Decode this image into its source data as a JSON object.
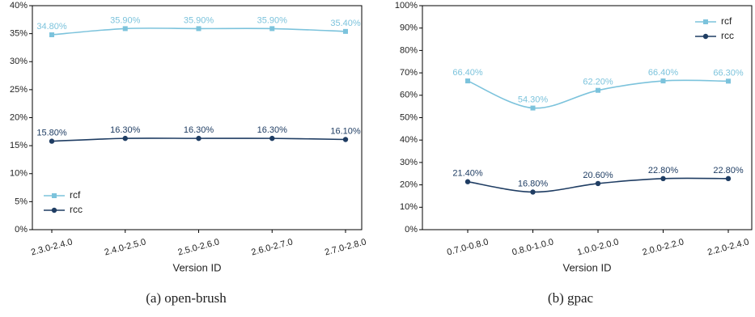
{
  "chart_data": [
    {
      "type": "line",
      "caption": "(a) open-brush",
      "x_label": "Version ID",
      "categories": [
        "2.3.0-2.4.0",
        "2.4.0-2.5.0",
        "2.5.0-2.6.0",
        "2.6.0-2.7.0",
        "2.7.0-2.8.0"
      ],
      "series": [
        {
          "name": "rcf",
          "color": "#7cc3dc",
          "marker": "square",
          "values": [
            34.8,
            35.9,
            35.9,
            35.9,
            35.4
          ],
          "value_labels": [
            "34.80%",
            "35.90%",
            "35.90%",
            "35.90%",
            "35.40%"
          ]
        },
        {
          "name": "rcc",
          "color": "#1f3d63",
          "marker": "circle",
          "values": [
            15.8,
            16.3,
            16.3,
            16.3,
            16.1
          ],
          "value_labels": [
            "15.80%",
            "16.30%",
            "16.30%",
            "16.30%",
            "16.10%"
          ]
        }
      ],
      "ylim": [
        0,
        40
      ],
      "yticks": [
        {
          "value": 0,
          "label": "0%"
        },
        {
          "value": 5,
          "label": "5%"
        },
        {
          "value": 10,
          "label": "10%"
        },
        {
          "value": 15,
          "label": "15%"
        },
        {
          "value": 20,
          "label": "20%"
        },
        {
          "value": 25,
          "label": "25%"
        },
        {
          "value": 30,
          "label": "30%"
        },
        {
          "value": 35,
          "label": "35%"
        },
        {
          "value": 40,
          "label": "40%"
        }
      ],
      "legend": "bottom-left",
      "smooth": true
    },
    {
      "type": "line",
      "caption": "(b) gpac",
      "x_label": "Version ID",
      "categories": [
        "0.7.0-0.8.0",
        "0.8.0-1.0.0",
        "1.0.0-2.0.0",
        "2.0.0-2.2.0",
        "2.2.0-2.4.0"
      ],
      "series": [
        {
          "name": "rcf",
          "color": "#7cc3dc",
          "marker": "square",
          "values": [
            66.4,
            54.3,
            62.2,
            66.4,
            66.3
          ],
          "value_labels": [
            "66.40%",
            "54.30%",
            "62.20%",
            "66.40%",
            "66.30%"
          ]
        },
        {
          "name": "rcc",
          "color": "#1f3d63",
          "marker": "circle",
          "values": [
            21.4,
            16.8,
            20.6,
            22.8,
            22.8
          ],
          "value_labels": [
            "21.40%",
            "16.80%",
            "20.60%",
            "22.80%",
            "22.80%"
          ]
        }
      ],
      "ylim": [
        0,
        100
      ],
      "yticks": [
        {
          "value": 0,
          "label": "0%"
        },
        {
          "value": 10,
          "label": "10%"
        },
        {
          "value": 20,
          "label": "20%"
        },
        {
          "value": 30,
          "label": "30%"
        },
        {
          "value": 40,
          "label": "40%"
        },
        {
          "value": 50,
          "label": "50%"
        },
        {
          "value": 60,
          "label": "60%"
        },
        {
          "value": 70,
          "label": "70%"
        },
        {
          "value": 80,
          "label": "80%"
        },
        {
          "value": 90,
          "label": "90%"
        },
        {
          "value": 100,
          "label": "100%"
        }
      ],
      "legend": "top-right",
      "smooth": true
    }
  ]
}
